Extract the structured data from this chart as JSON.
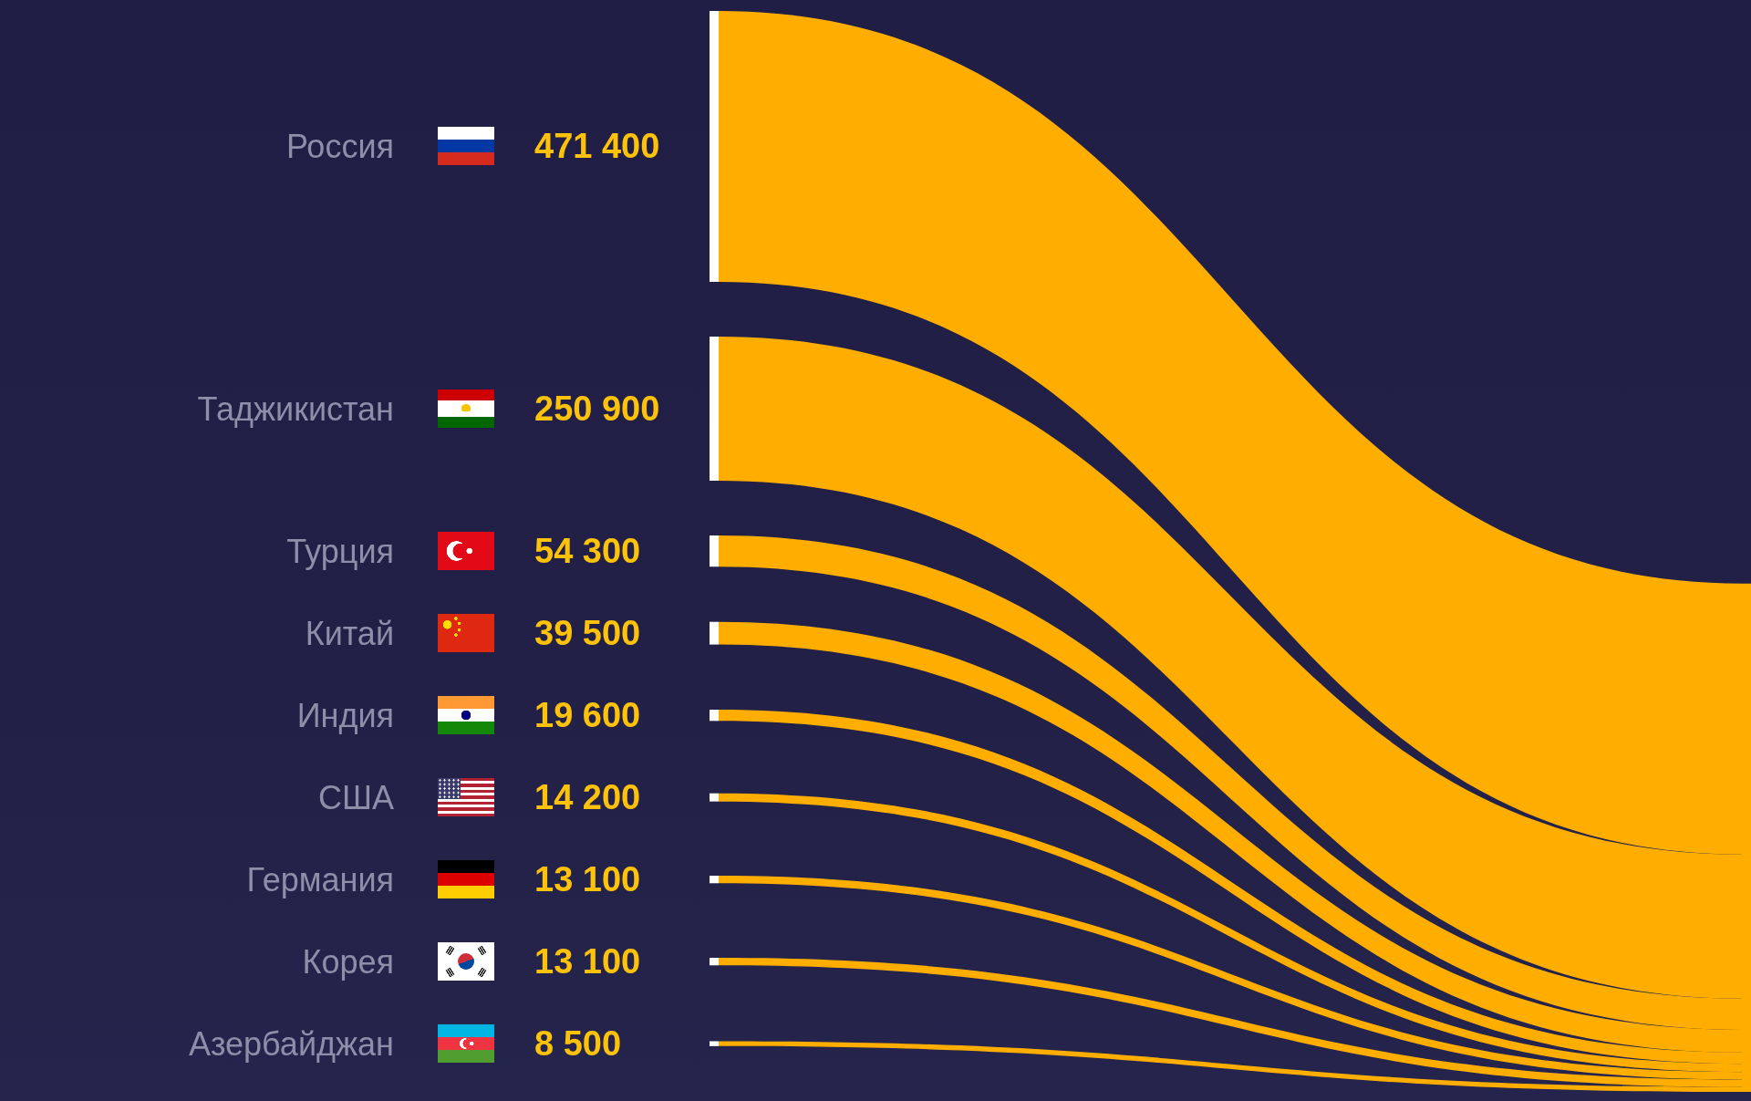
{
  "chart_data": {
    "type": "other",
    "categories": [
      "Россия",
      "Таджикистан",
      "Турция",
      "Китай",
      "Индия",
      "США",
      "Германия",
      "Корея",
      "Азербайджан"
    ],
    "values": [
      471400,
      250900,
      54300,
      39500,
      19600,
      14200,
      13100,
      13100,
      8500
    ],
    "value_labels": [
      "471 400",
      "250 900",
      "54 300",
      "39 500",
      "19 600",
      "14 200",
      "13 100",
      "13 100",
      "8 500"
    ],
    "color": "#ffae00"
  }
}
